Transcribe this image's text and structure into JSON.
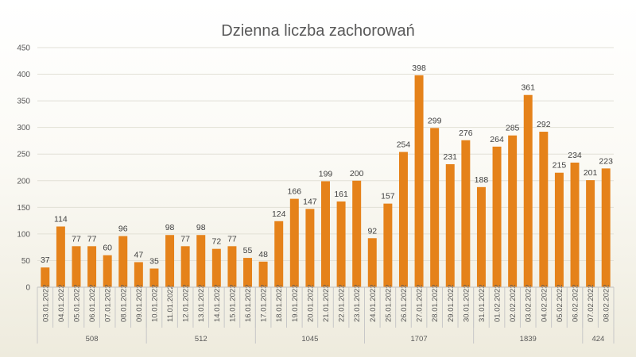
{
  "chart_data": {
    "type": "bar",
    "title": "Dzienna liczba zachorowań",
    "xlabel": "",
    "ylabel": "",
    "ylim": [
      0,
      450
    ],
    "yticks": [
      0,
      50,
      100,
      150,
      200,
      250,
      300,
      350,
      400,
      450
    ],
    "grid": true,
    "legend": "none",
    "bar_color": "#E5821A",
    "categories": [
      "03.01.2022",
      "04.01.2022",
      "05.01.2022",
      "06.01.2022",
      "07.01.2022",
      "08.01.2022",
      "09.01.2022",
      "10.01.2022",
      "11.01.2022",
      "12.01.2022",
      "13.01.2022",
      "14.01.2022",
      "15.01.2022",
      "16.01.2022",
      "17.01.2022",
      "18.01.2022",
      "19.01.2022",
      "20.01.2022",
      "21.01.2022",
      "22.01.2022",
      "23.01.2022",
      "24.01.2022",
      "25.01.2022",
      "26.01.2022",
      "27.01.2022",
      "28.01.2022",
      "29.01.2022",
      "30.01.2022",
      "31.01.2022",
      "01.02.2022",
      "02.02.2022",
      "03.02.2022",
      "04.02.2022",
      "05.02.2022",
      "06.02.2022",
      "07.02.2022",
      "08.02.2022"
    ],
    "values": [
      37,
      114,
      77,
      77,
      60,
      96,
      47,
      35,
      98,
      77,
      98,
      72,
      77,
      55,
      48,
      124,
      166,
      147,
      199,
      161,
      200,
      92,
      157,
      254,
      398,
      299,
      231,
      276,
      188,
      264,
      285,
      361,
      292,
      215,
      234,
      201,
      223
    ],
    "groups": [
      {
        "label": "508",
        "count": 7
      },
      {
        "label": "512",
        "count": 7
      },
      {
        "label": "1045",
        "count": 7
      },
      {
        "label": "1707",
        "count": 7
      },
      {
        "label": "1839",
        "count": 7
      },
      {
        "label": "424",
        "count": 2
      }
    ]
  }
}
